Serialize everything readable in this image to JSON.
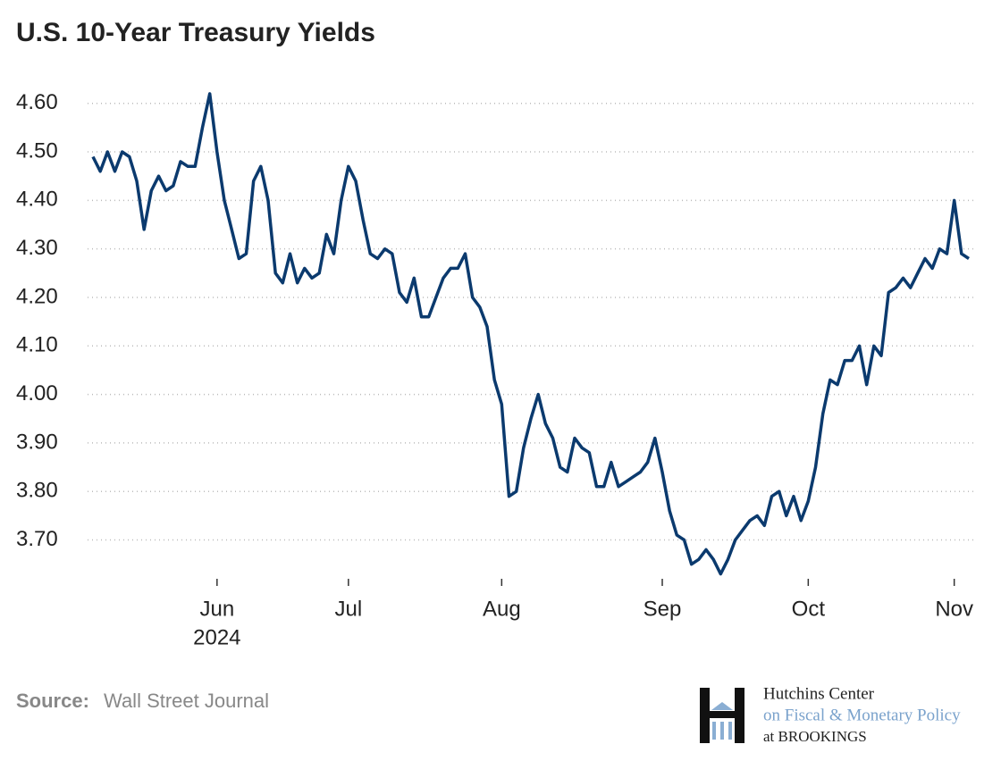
{
  "chart_data": {
    "type": "line",
    "title": "U.S. 10-Year Treasury Yields",
    "year_label": "2024",
    "source_label": "Source:",
    "source": "Wall Street Journal",
    "logo": {
      "line1": "Hutchins Center",
      "line2": "on Fiscal & Monetary Policy",
      "line3": "at BROOKINGS"
    },
    "categories": [
      null,
      null,
      null,
      null,
      null,
      null,
      null,
      null,
      null,
      null,
      null,
      null,
      null,
      null,
      null,
      null,
      null,
      "Jun",
      null,
      null,
      null,
      null,
      null,
      null,
      null,
      null,
      null,
      null,
      null,
      null,
      null,
      null,
      null,
      null,
      null,
      "Jul",
      null,
      null,
      null,
      null,
      null,
      null,
      null,
      null,
      null,
      null,
      null,
      null,
      null,
      null,
      null,
      null,
      null,
      null,
      null,
      null,
      "Aug",
      null,
      null,
      null,
      null,
      null,
      null,
      null,
      null,
      null,
      null,
      null,
      null,
      null,
      null,
      null,
      null,
      null,
      null,
      null,
      null,
      null,
      "Sep",
      null,
      null,
      null,
      null,
      null,
      null,
      null,
      null,
      null,
      null,
      null,
      null,
      null,
      null,
      null,
      null,
      null,
      null,
      null,
      "Oct",
      null,
      null,
      null,
      null,
      null,
      null,
      null,
      null,
      null,
      null,
      null,
      null,
      null,
      null,
      null,
      null,
      null,
      null,
      null,
      "Nov",
      null,
      null
    ],
    "series": [
      {
        "name": "10-Year Yield",
        "color": "#0b3a6e",
        "values": [
          4.49,
          4.46,
          4.5,
          4.46,
          4.5,
          4.49,
          4.44,
          4.34,
          4.42,
          4.45,
          4.42,
          4.43,
          4.48,
          4.47,
          4.47,
          4.55,
          4.62,
          4.5,
          4.4,
          4.34,
          4.28,
          4.29,
          4.44,
          4.47,
          4.4,
          4.25,
          4.23,
          4.29,
          4.23,
          4.26,
          4.24,
          4.25,
          4.33,
          4.29,
          4.4,
          4.47,
          4.44,
          4.36,
          4.29,
          4.28,
          4.3,
          4.29,
          4.21,
          4.19,
          4.24,
          4.16,
          4.16,
          4.2,
          4.24,
          4.26,
          4.26,
          4.29,
          4.2,
          4.18,
          4.14,
          4.03,
          3.98,
          3.79,
          3.8,
          3.89,
          3.95,
          4.0,
          3.94,
          3.91,
          3.85,
          3.84,
          3.91,
          3.89,
          3.88,
          3.81,
          3.81,
          3.86,
          3.81,
          3.82,
          3.83,
          3.84,
          3.86,
          3.91,
          3.84,
          3.76,
          3.71,
          3.7,
          3.65,
          3.66,
          3.68,
          3.66,
          3.63,
          3.66,
          3.7,
          3.72,
          3.74,
          3.75,
          3.73,
          3.79,
          3.8,
          3.75,
          3.79,
          3.74,
          3.78,
          3.85,
          3.96,
          4.03,
          4.02,
          4.07,
          4.07,
          4.1,
          4.02,
          4.1,
          4.08,
          4.21,
          4.22,
          4.24,
          4.22,
          4.25,
          4.28,
          4.26,
          4.3,
          4.29,
          4.4,
          4.29,
          4.28
        ]
      }
    ],
    "ylim": [
      3.62,
      4.64
    ],
    "yticks": [
      {
        "value": 3.7,
        "label": "3.70"
      },
      {
        "value": 3.8,
        "label": "3.80"
      },
      {
        "value": 3.9,
        "label": "3.90"
      },
      {
        "value": 4.0,
        "label": "4.00"
      },
      {
        "value": 4.1,
        "label": "4.10"
      },
      {
        "value": 4.2,
        "label": "4.20"
      },
      {
        "value": 4.3,
        "label": "4.30"
      },
      {
        "value": 4.4,
        "label": "4.40"
      },
      {
        "value": 4.5,
        "label": "4.50"
      },
      {
        "value": 4.6,
        "label": "4.60"
      }
    ],
    "grid": true
  }
}
